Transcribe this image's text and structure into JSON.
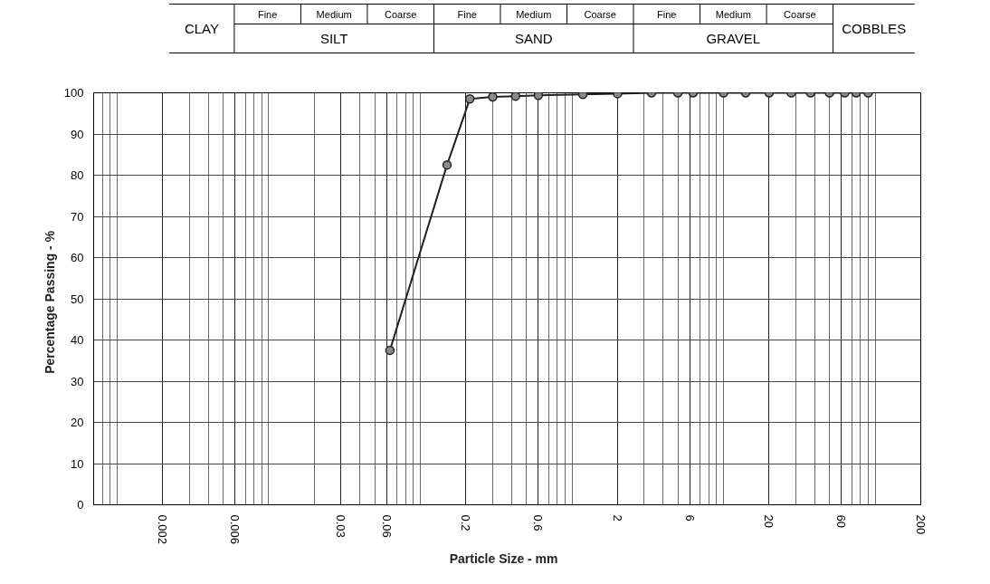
{
  "chart_data": {
    "type": "line",
    "xlabel": "Particle Size  -  mm",
    "ylabel": "Percentage Passing  -  %",
    "annotations": [
      "CLAY",
      "Fine",
      "Medium",
      "Coarse",
      "SILT",
      "Fine",
      "Medium",
      "Coarse",
      "SAND",
      "Fine",
      "Medium",
      "Coarse",
      "GRAVEL",
      "COBBLES"
    ],
    "x": [
      0.063,
      0.15,
      0.212,
      0.3,
      0.425,
      0.6,
      1.18,
      2,
      3.35,
      5,
      6.3,
      10,
      14,
      20,
      28,
      37.5,
      50,
      63,
      75,
      90
    ],
    "series": [
      {
        "color": "#222222",
        "values": [
          37.5,
          82.5,
          98.5,
          99,
          99.2,
          99.4,
          99.6,
          99.8,
          100,
          100,
          100,
          100,
          100,
          100,
          100,
          100,
          100,
          100,
          100,
          100
        ]
      }
    ],
    "log": "x",
    "xlim": [
      0.0007,
      200
    ],
    "xticks": [
      0.002,
      0.006,
      0.03,
      0.06,
      0.2,
      0.6,
      2,
      6,
      20,
      60,
      200
    ],
    "ylim": [
      0,
      100
    ],
    "yticks": [
      0,
      10,
      20,
      30,
      40,
      50,
      60,
      70,
      80,
      90,
      100
    ],
    "grid": true,
    "marker": "circle",
    "line_style": "solid"
  }
}
